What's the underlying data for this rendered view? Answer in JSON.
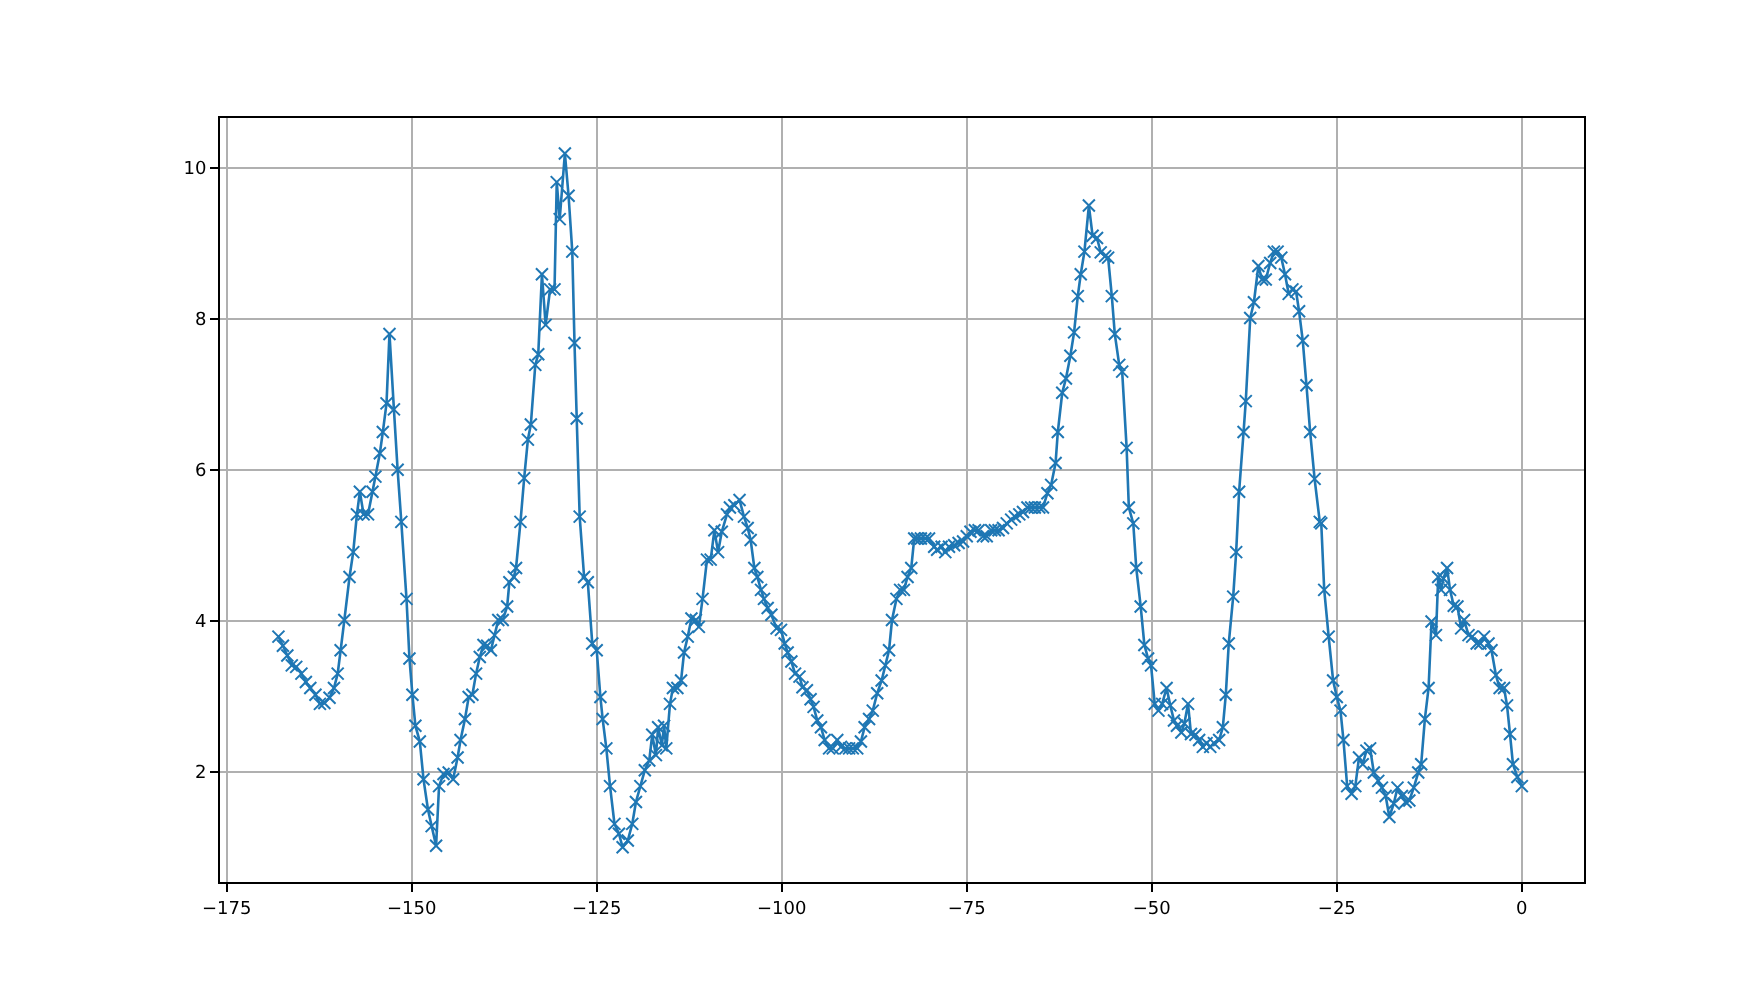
{
  "chart_data": {
    "type": "line",
    "marker": "cross",
    "line_style": "solid",
    "grid": true,
    "xlim": [
      -175.9,
      8.4
    ],
    "ylim": [
      0.54,
      10.66
    ],
    "xticks": [
      {
        "value": -175,
        "label": "−175"
      },
      {
        "value": -150,
        "label": "−150"
      },
      {
        "value": -125,
        "label": "−125"
      },
      {
        "value": -100,
        "label": "−100"
      },
      {
        "value": -75,
        "label": "−75"
      },
      {
        "value": -50,
        "label": "−50"
      },
      {
        "value": -25,
        "label": "−25"
      },
      0
    ],
    "yticks": [
      2,
      4,
      6,
      8,
      10
    ],
    "series": [
      {
        "color": "#1f77b4",
        "x": [
          -168.0,
          -167.4,
          -166.8,
          -166.2,
          -165.6,
          -164.9,
          -164.3,
          -163.7,
          -163.0,
          -162.4,
          -161.8,
          -161.1,
          -160.5,
          -160.0,
          -159.6,
          -159.1,
          -158.4,
          -157.9,
          -157.4,
          -157.0,
          -156.5,
          -155.9,
          -155.3,
          -154.9,
          -154.3,
          -153.9,
          -153.4,
          -153.0,
          -152.4,
          -151.9,
          -151.4,
          -150.7,
          -150.3,
          -149.9,
          -149.5,
          -148.9,
          -148.4,
          -147.8,
          -147.3,
          -146.7,
          -146.3,
          -145.7,
          -145.0,
          -144.4,
          -143.8,
          -143.4,
          -142.8,
          -142.3,
          -141.8,
          -141.3,
          -140.8,
          -140.3,
          -139.8,
          -139.3,
          -138.8,
          -138.3,
          -137.7,
          -137.1,
          -136.8,
          -136.2,
          -135.9,
          -135.3,
          -134.8,
          -134.3,
          -133.9,
          -133.3,
          -132.9,
          -132.4,
          -131.9,
          -131.3,
          -130.7,
          -130.4,
          -130.0,
          -129.3,
          -128.8,
          -128.3,
          -128.0,
          -127.7,
          -127.3,
          -126.7,
          -126.2,
          -125.6,
          -125.0,
          -124.5,
          -124.2,
          -123.7,
          -123.2,
          -122.6,
          -122.0,
          -121.5,
          -120.8,
          -120.2,
          -119.7,
          -119.1,
          -118.5,
          -117.9,
          -117.5,
          -117.0,
          -116.7,
          -116.2,
          -115.9,
          -115.6,
          -115.1,
          -114.7,
          -114.1,
          -113.6,
          -113.2,
          -112.7,
          -112.2,
          -111.6,
          -111.2,
          -110.7,
          -110.1,
          -109.6,
          -109.1,
          -108.6,
          -108.1,
          -107.4,
          -107.0,
          -106.4,
          -105.7,
          -105.1,
          -104.6,
          -104.2,
          -103.7,
          -103.3,
          -102.8,
          -102.4,
          -101.9,
          -101.4,
          -100.7,
          -100.1,
          -99.6,
          -99.2,
          -98.7,
          -98.2,
          -97.6,
          -97.2,
          -96.6,
          -96.1,
          -95.7,
          -95.2,
          -94.7,
          -94.2,
          -93.6,
          -93.1,
          -92.5,
          -92.0,
          -91.4,
          -90.9,
          -90.4,
          -89.8,
          -89.3,
          -88.8,
          -88.2,
          -87.7,
          -87.1,
          -86.5,
          -86.0,
          -85.5,
          -85.1,
          -84.5,
          -84.0,
          -83.5,
          -83.0,
          -82.5,
          -82.1,
          -81.7,
          -81.2,
          -80.6,
          -80.1,
          -79.4,
          -79.0,
          -78.4,
          -77.9,
          -77.4,
          -76.7,
          -76.1,
          -75.5,
          -75.0,
          -74.5,
          -73.9,
          -73.4,
          -72.8,
          -72.3,
          -71.7,
          -71.2,
          -70.7,
          -70.1,
          -69.6,
          -69.0,
          -68.5,
          -67.9,
          -67.4,
          -66.8,
          -66.3,
          -65.8,
          -65.2,
          -64.7,
          -64.1,
          -63.6,
          -63.0,
          -62.7,
          -62.1,
          -61.6,
          -61.0,
          -60.5,
          -60.0,
          -59.6,
          -59.1,
          -58.5,
          -58.0,
          -57.4,
          -56.9,
          -56.3,
          -55.9,
          -55.4,
          -55.0,
          -54.4,
          -54.0,
          -53.4,
          -53.1,
          -52.5,
          -52.1,
          -51.5,
          -51.0,
          -50.5,
          -50.1,
          -49.6,
          -49.1,
          -48.6,
          -48.0,
          -47.5,
          -47.0,
          -46.6,
          -46.0,
          -45.6,
          -45.1,
          -44.7,
          -44.1,
          -43.6,
          -43.1,
          -42.6,
          -42.1,
          -41.6,
          -40.9,
          -40.4,
          -40.0,
          -39.6,
          -39.0,
          -38.6,
          -38.2,
          -37.6,
          -37.3,
          -36.7,
          -36.2,
          -35.6,
          -35.1,
          -34.6,
          -34.0,
          -33.5,
          -33.0,
          -32.5,
          -32.0,
          -31.5,
          -31.0,
          -30.5,
          -30.1,
          -29.6,
          -29.1,
          -28.6,
          -28.0,
          -27.3,
          -27.1,
          -26.7,
          -26.1,
          -25.5,
          -25.0,
          -24.5,
          -24.1,
          -23.6,
          -23.0,
          -22.5,
          -22.0,
          -21.5,
          -21.0,
          -20.5,
          -20.0,
          -19.4,
          -18.9,
          -18.4,
          -17.9,
          -17.3,
          -16.8,
          -16.2,
          -15.7,
          -15.2,
          -14.6,
          -14.0,
          -13.6,
          -13.1,
          -12.6,
          -12.2,
          -11.6,
          -11.3,
          -10.9,
          -10.6,
          -10.1,
          -9.7,
          -9.2,
          -8.7,
          -8.2,
          -7.8,
          -7.2,
          -6.7,
          -6.1,
          -5.6,
          -5.1,
          -4.5,
          -4.1,
          -3.5,
          -3.0,
          -2.4,
          -2.0,
          -1.6,
          -1.2,
          -0.6,
          0.0
        ],
        "values": [
          3.79,
          3.67,
          3.54,
          3.41,
          3.39,
          3.3,
          3.19,
          3.11,
          3.02,
          2.9,
          2.91,
          2.98,
          3.11,
          3.3,
          3.61,
          4.01,
          4.58,
          4.91,
          5.41,
          5.71,
          5.41,
          5.41,
          5.71,
          5.91,
          6.22,
          6.5,
          6.88,
          7.8,
          6.8,
          6.0,
          5.31,
          4.29,
          3.5,
          3.02,
          2.61,
          2.4,
          1.9,
          1.5,
          1.28,
          1.02,
          1.81,
          1.97,
          1.99,
          1.9,
          2.19,
          2.42,
          2.7,
          2.99,
          3.02,
          3.3,
          3.52,
          3.68,
          3.67,
          3.61,
          3.81,
          4.01,
          4.01,
          4.19,
          4.51,
          4.58,
          4.7,
          5.31,
          5.89,
          6.4,
          6.6,
          7.39,
          7.53,
          8.59,
          7.92,
          8.39,
          8.39,
          9.81,
          9.32,
          10.19,
          9.63,
          8.89,
          7.68,
          6.68,
          5.38,
          4.58,
          4.51,
          3.7,
          3.61,
          2.99,
          2.7,
          2.31,
          1.81,
          1.31,
          1.18,
          1.0,
          1.09,
          1.31,
          1.6,
          1.81,
          2.02,
          2.15,
          2.49,
          2.22,
          2.59,
          2.35,
          2.61,
          2.31,
          2.9,
          3.11,
          3.11,
          3.21,
          3.58,
          3.79,
          4.03,
          4.01,
          3.92,
          4.29,
          4.81,
          4.81,
          5.2,
          4.91,
          5.18,
          5.41,
          5.5,
          5.53,
          5.6,
          5.38,
          5.23,
          5.07,
          4.7,
          4.58,
          4.41,
          4.29,
          4.17,
          4.08,
          3.9,
          3.88,
          3.7,
          3.58,
          3.46,
          3.3,
          3.26,
          3.12,
          3.08,
          2.96,
          2.86,
          2.68,
          2.59,
          2.42,
          2.31,
          2.31,
          2.42,
          2.33,
          2.31,
          2.31,
          2.31,
          2.31,
          2.4,
          2.59,
          2.7,
          2.81,
          3.04,
          3.21,
          3.41,
          3.61,
          4.01,
          4.29,
          4.41,
          4.41,
          4.58,
          4.7,
          5.09,
          5.09,
          5.09,
          5.09,
          5.09,
          4.98,
          4.94,
          4.98,
          4.91,
          4.98,
          5.0,
          5.03,
          5.05,
          5.12,
          5.18,
          5.2,
          5.2,
          5.12,
          5.12,
          5.2,
          5.2,
          5.2,
          5.23,
          5.29,
          5.34,
          5.38,
          5.41,
          5.44,
          5.5,
          5.5,
          5.5,
          5.5,
          5.5,
          5.69,
          5.8,
          6.09,
          6.5,
          7.02,
          7.21,
          7.51,
          7.82,
          8.3,
          8.59,
          8.89,
          9.5,
          9.1,
          9.07,
          8.88,
          8.83,
          8.81,
          8.3,
          7.8,
          7.39,
          7.3,
          6.29,
          5.5,
          5.29,
          4.7,
          4.19,
          3.68,
          3.5,
          3.41,
          2.9,
          2.81,
          2.9,
          3.11,
          2.88,
          2.68,
          2.61,
          2.52,
          2.64,
          2.9,
          2.5,
          2.49,
          2.42,
          2.33,
          2.38,
          2.33,
          2.38,
          2.42,
          2.59,
          3.02,
          3.7,
          4.32,
          4.91,
          5.71,
          6.5,
          6.91,
          8.01,
          8.22,
          8.7,
          8.52,
          8.52,
          8.74,
          8.89,
          8.89,
          8.81,
          8.59,
          8.33,
          8.39,
          8.36,
          8.1,
          7.71,
          7.12,
          6.5,
          5.88,
          5.31,
          5.29,
          4.41,
          3.79,
          3.21,
          2.99,
          2.81,
          2.42,
          1.81,
          1.71,
          1.81,
          2.19,
          2.1,
          2.28,
          2.31,
          1.99,
          1.88,
          1.79,
          1.68,
          1.4,
          1.58,
          1.79,
          1.68,
          1.6,
          1.62,
          1.79,
          1.99,
          2.1,
          2.7,
          3.11,
          3.99,
          3.81,
          4.58,
          4.41,
          4.56,
          4.7,
          4.41,
          4.2,
          4.19,
          3.9,
          4.01,
          3.81,
          3.79,
          3.7,
          3.7,
          3.79,
          3.7,
          3.61,
          3.28,
          3.11,
          3.11,
          2.88,
          2.5,
          2.1,
          1.93,
          1.81
        ]
      }
    ]
  }
}
